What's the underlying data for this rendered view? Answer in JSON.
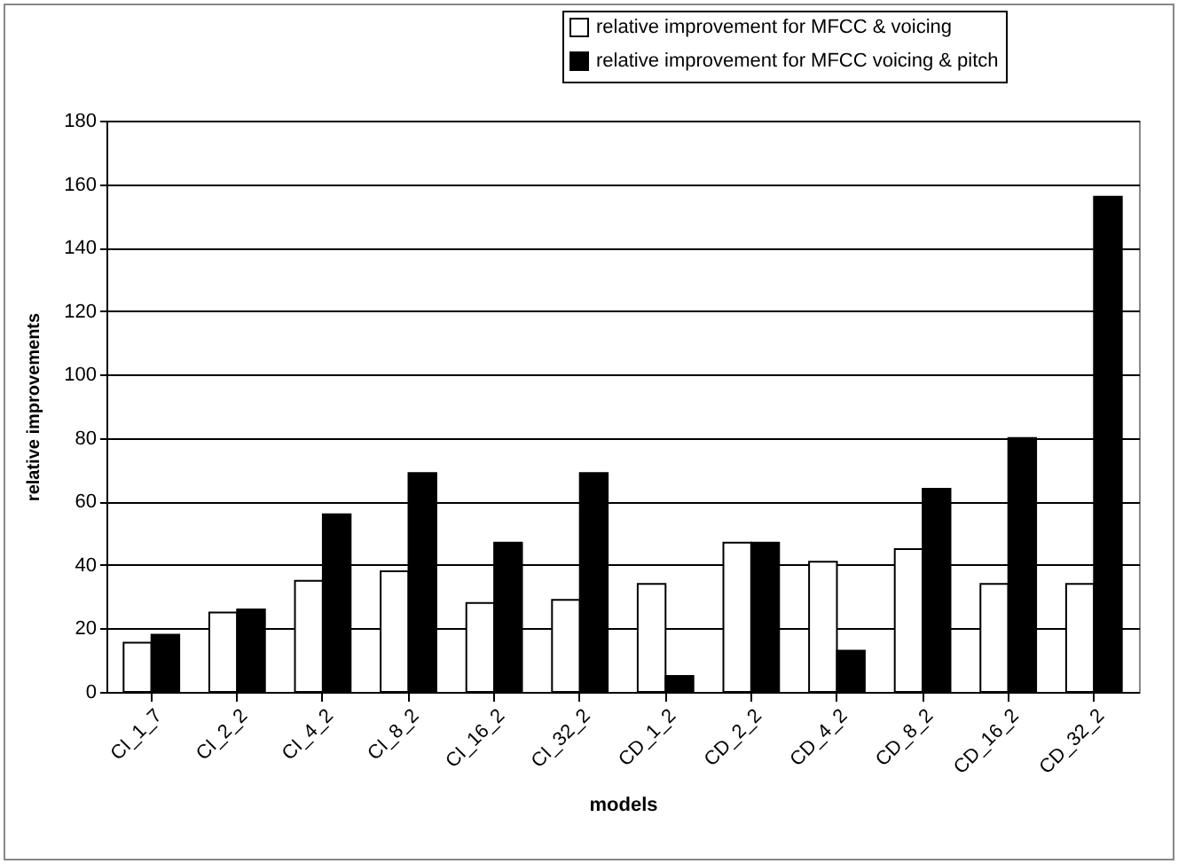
{
  "chart_data": {
    "type": "bar",
    "xlabel": "models",
    "ylabel": "relative improvements",
    "categories": [
      "CI_1_7",
      "CI_2_2",
      "CI_4_2",
      "CI_8_2",
      "CI_16_2",
      "CI_32_2",
      "CD_1_2",
      "CD_2_2",
      "CD_4_2",
      "CD_8_2",
      "CD_16_2",
      "CD_32_2"
    ],
    "series": [
      {
        "name": "relative improvement for MFCC & voicing",
        "color": "#ffffff",
        "values": [
          15.5,
          25,
          35,
          38,
          28,
          29,
          34,
          47,
          41,
          45,
          34,
          34
        ]
      },
      {
        "name": "relative improvement for MFCC voicing & pitch",
        "color": "#000000",
        "values": [
          18,
          26,
          56,
          69,
          47,
          69,
          5,
          47,
          13,
          64,
          80,
          156
        ]
      }
    ],
    "ylim": [
      0,
      180
    ],
    "yticks": [
      0,
      20,
      40,
      60,
      80,
      100,
      120,
      140,
      160,
      180
    ],
    "grid": "y",
    "legend": "top right"
  }
}
